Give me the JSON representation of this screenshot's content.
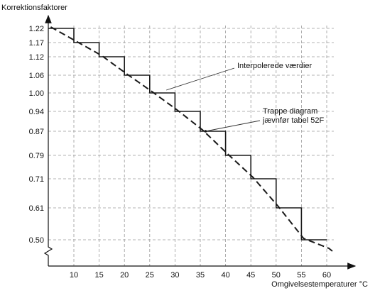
{
  "chart_data": {
    "type": "line",
    "ylabel": "Korrektionsfaktorer",
    "xlabel": "Omgivelsestemperaturer °C",
    "x_ticks": [
      10,
      15,
      20,
      25,
      30,
      35,
      40,
      45,
      50,
      55,
      60
    ],
    "y_ticks": [
      1.22,
      1.17,
      1.12,
      1.06,
      1.0,
      0.94,
      0.87,
      0.79,
      0.71,
      0.61,
      0.5
    ],
    "xlim": [
      5,
      60
    ],
    "series": [
      {
        "label": "Trappe diagram jævnfør tabel 52F",
        "style": "solid-step",
        "steps": [
          {
            "x0": 5,
            "x1": 10,
            "y": 1.22
          },
          {
            "x0": 10,
            "x1": 15,
            "y": 1.17
          },
          {
            "x0": 15,
            "x1": 20,
            "y": 1.12
          },
          {
            "x0": 20,
            "x1": 25,
            "y": 1.06
          },
          {
            "x0": 25,
            "x1": 30,
            "y": 1.0
          },
          {
            "x0": 30,
            "x1": 35,
            "y": 0.94
          },
          {
            "x0": 35,
            "x1": 40,
            "y": 0.87
          },
          {
            "x0": 40,
            "x1": 45,
            "y": 0.79
          },
          {
            "x0": 45,
            "x1": 50,
            "y": 0.71
          },
          {
            "x0": 50,
            "x1": 55,
            "y": 0.61
          },
          {
            "x0": 55,
            "x1": 60,
            "y": 0.5
          }
        ]
      },
      {
        "label": "Interpolerede værdier",
        "style": "dashed",
        "x": [
          5,
          10,
          15,
          20,
          25,
          30,
          35,
          40,
          45,
          50,
          55,
          60
        ],
        "y": [
          1.22,
          1.17,
          1.12,
          1.06,
          1.0,
          0.94,
          0.87,
          0.79,
          0.71,
          0.61,
          0.5,
          0.45
        ]
      }
    ],
    "annotations": [
      {
        "text": "Interpolerede værdier",
        "points_to_x": 28,
        "points_to_y": 0.99
      },
      {
        "text_lines": [
          "Trappe diagram",
          "jævnfør tabel 52F"
        ],
        "points_to_x": 38,
        "points_to_y": 0.87
      }
    ],
    "grid": "dashed"
  }
}
